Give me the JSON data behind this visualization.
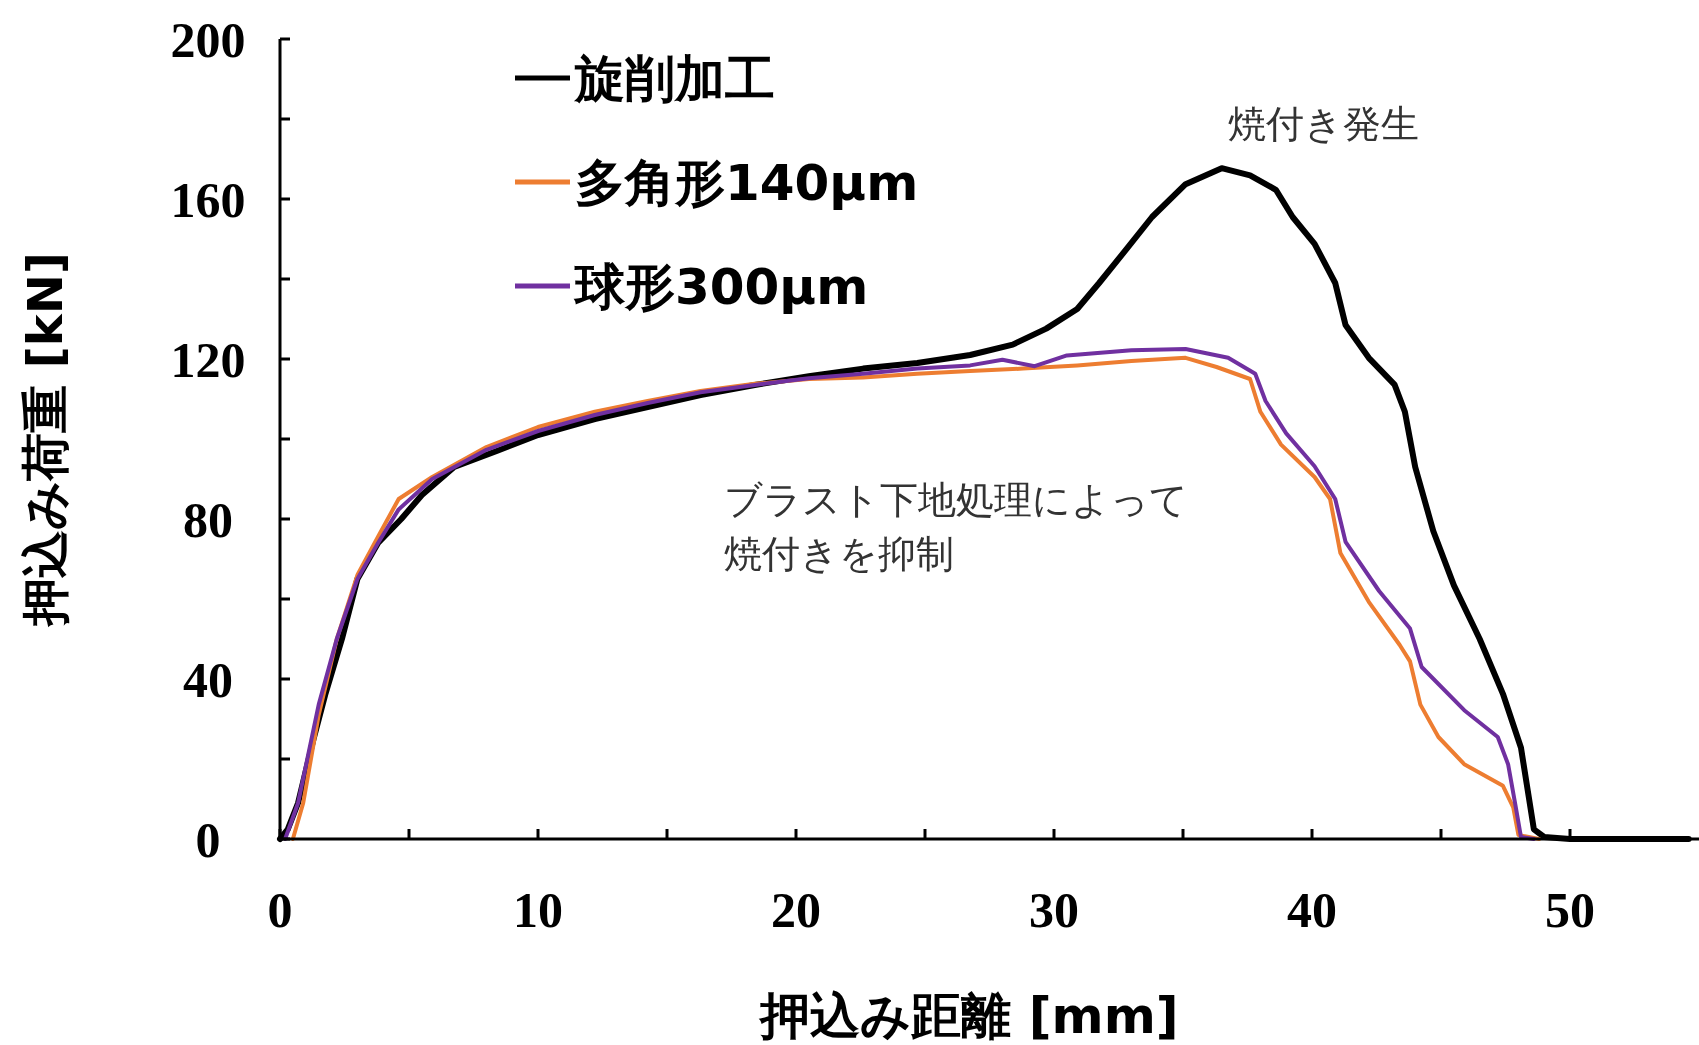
{
  "chart_data": {
    "type": "line",
    "xlabel": "押込み距離 [mm]",
    "ylabel": "押込み荷重 [kN]",
    "xlim": [
      0,
      55
    ],
    "xticks": [
      0,
      {
        "value": 5,
        "label": null
      },
      10,
      {
        "value": 15,
        "label": null
      },
      20,
      {
        "value": 25,
        "label": null
      },
      30,
      {
        "value": 35,
        "label": null
      },
      40,
      {
        "value": 45,
        "label": null
      },
      50
    ],
    "ylim": [
      0,
      200
    ],
    "yticks": [
      0,
      {
        "value": 20,
        "label": null
      },
      40,
      {
        "value": 60,
        "label": null
      },
      80,
      {
        "value": 100,
        "label": null
      },
      120,
      {
        "value": 140,
        "label": null
      },
      160,
      {
        "value": 180,
        "label": null
      },
      200
    ],
    "grid": false,
    "legend": "top left",
    "marker": "none",
    "line_style": "solid",
    "annotations": [
      "焼付き発生",
      "ブラスト下地処理によって焼付きを抑制"
    ],
    "series": [
      {
        "name": "旋削加工",
        "color": "#000000",
        "x": [
          0,
          0.3,
          0.7,
          1.3,
          1.75,
          2.4,
          3,
          3.8,
          4.7,
          5.5,
          6.75,
          8.4,
          10,
          12.2,
          14.25,
          16.3,
          18.4,
          20.5,
          22.6,
          24.7,
          26.75,
          28.4,
          29.7,
          30.9,
          31.75,
          32.8,
          33.8,
          35.1,
          36.5,
          37.6,
          38.6,
          39.25,
          40.1,
          40.9,
          41.3,
          42.2,
          43.2,
          43.6,
          44,
          44.7,
          45.5,
          46.5,
          47.4,
          48.1,
          48.4,
          48.6,
          49,
          50,
          54.6
        ],
        "values": [
          0,
          2.4,
          9,
          25,
          36,
          50,
          65,
          74,
          80,
          86,
          93,
          97,
          101,
          105,
          108,
          111,
          113.5,
          115.7,
          117.6,
          119,
          121,
          123.6,
          127.6,
          132.5,
          139,
          147.4,
          155.5,
          163.7,
          167.7,
          165.9,
          162.3,
          155.5,
          148.8,
          139,
          128.5,
          120.3,
          113.6,
          106.8,
          93,
          77,
          63.4,
          50,
          36.3,
          22.8,
          10.6,
          2.4,
          0.5,
          0,
          0
        ]
      },
      {
        "name": "多角形140µm",
        "color": "#ed7d31",
        "x": [
          0.5,
          0.9,
          1.5,
          2.2,
          3,
          3.8,
          4.6,
          5.9,
          8,
          10,
          12.2,
          14.25,
          16.3,
          18.4,
          20.5,
          22.6,
          24.7,
          26.75,
          28.8,
          30.9,
          33,
          35.1,
          36.3,
          37.6,
          38,
          38.8,
          40.1,
          40.7,
          41.1,
          42.2,
          43.4,
          43.8,
          44.2,
          44.9,
          45.9,
          47.4,
          47.8,
          48,
          48.8
        ],
        "values": [
          0,
          9,
          31,
          50,
          66,
          75.6,
          85,
          90.5,
          98,
          103,
          106.8,
          109.5,
          112,
          113.8,
          115,
          115.4,
          116.3,
          117,
          117.6,
          118.4,
          119.5,
          120.3,
          118,
          115,
          106.8,
          98.6,
          90.5,
          85,
          71.5,
          59.3,
          48.5,
          44.4,
          33.6,
          25.5,
          18.7,
          13.3,
          7.9,
          1,
          0
        ]
      },
      {
        "name": "球形300µm",
        "color": "#7030a0",
        "x": [
          0.2,
          0.7,
          1.5,
          2.2,
          3,
          3.8,
          4.6,
          5.9,
          8,
          10,
          12.2,
          14.25,
          16.3,
          18.4,
          20.5,
          22.6,
          24.7,
          26.75,
          28,
          29.25,
          30.5,
          33,
          35.1,
          36.75,
          37.8,
          38.2,
          39,
          40.1,
          40.9,
          41.3,
          42.6,
          43.8,
          44.25,
          45.9,
          47.2,
          47.6,
          47.9,
          48.1,
          48.6
        ],
        "values": [
          0,
          9,
          33.6,
          50,
          65,
          74,
          82.4,
          90,
          97.3,
          102,
          106,
          109,
          111.7,
          113.5,
          115.2,
          116.3,
          117.6,
          118.4,
          119.8,
          118.2,
          120.9,
          122.2,
          122.5,
          120.3,
          116.3,
          109.5,
          101.4,
          93.2,
          85,
          74.3,
          62,
          52.6,
          43,
          32.2,
          25.5,
          18.7,
          7.9,
          0.5,
          0
        ]
      }
    ]
  }
}
